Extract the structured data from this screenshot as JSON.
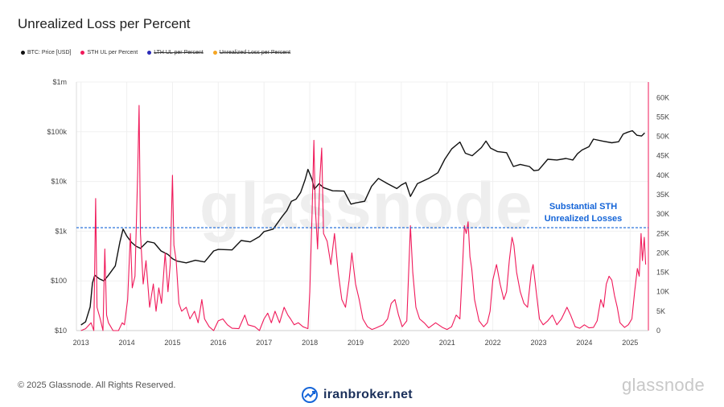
{
  "header": {
    "title": "Unrealized Loss per Percent"
  },
  "legend": [
    {
      "label": "BTC: Price [USD]",
      "color": "#111111",
      "struck": false
    },
    {
      "label": "STH UL per Percent",
      "color": "#f0195a",
      "struck": false
    },
    {
      "label": "LTH UL per Percent",
      "color": "#2b2bb8",
      "struck": true
    },
    {
      "label": "Unrealized Loss per Percent",
      "color": "#f5a623",
      "struck": true
    }
  ],
  "footer": {
    "copyright": "© 2025 Glassnode. All Rights Reserved.",
    "brand": "iranbroker.net",
    "watermark": "glassnode"
  },
  "watermark_center": "glassnode",
  "chart_data": {
    "type": "line",
    "annotation": {
      "text_line1": "Substantial STH",
      "text_line2": "Unrealized Losses",
      "color": "#1565d8"
    },
    "x_ticks": [
      "2013",
      "2014",
      "2015",
      "2016",
      "2017",
      "2018",
      "2019",
      "2020",
      "2021",
      "2022",
      "2023",
      "2024",
      "2025"
    ],
    "x_range": [
      2012.9,
      2025.4
    ],
    "y_left": {
      "scale": "log",
      "ticks": [
        "$10",
        "$100",
        "$1k",
        "$10k",
        "$100k",
        "$1m"
      ],
      "tick_values": [
        10,
        100,
        1000,
        10000,
        100000,
        1000000
      ]
    },
    "y_right": {
      "ticks": [
        "0",
        "5K",
        "10K",
        "15K",
        "20K",
        "25K",
        "30K",
        "35K",
        "40K",
        "45K",
        "50K",
        "55K",
        "60K"
      ],
      "tick_values": [
        0,
        5000,
        10000,
        15000,
        20000,
        25000,
        30000,
        35000,
        40000,
        45000,
        50000,
        55000,
        60000
      ],
      "max": 64000
    },
    "threshold": {
      "axis": "right",
      "value": 26500,
      "color": "#1565d8"
    },
    "series": [
      {
        "name": "BTC: Price [USD]",
        "axis": "left",
        "color": "#111111",
        "points": [
          [
            2013.0,
            13
          ],
          [
            2013.1,
            15
          ],
          [
            2013.2,
            30
          ],
          [
            2013.25,
            90
          ],
          [
            2013.3,
            130
          ],
          [
            2013.4,
            110
          ],
          [
            2013.5,
            100
          ],
          [
            2013.6,
            130
          ],
          [
            2013.75,
            200
          ],
          [
            2013.85,
            600
          ],
          [
            2013.92,
            1100
          ],
          [
            2014.0,
            800
          ],
          [
            2014.1,
            600
          ],
          [
            2014.2,
            500
          ],
          [
            2014.3,
            450
          ],
          [
            2014.45,
            620
          ],
          [
            2014.6,
            580
          ],
          [
            2014.75,
            400
          ],
          [
            2014.9,
            340
          ],
          [
            2015.0,
            280
          ],
          [
            2015.1,
            250
          ],
          [
            2015.3,
            230
          ],
          [
            2015.5,
            260
          ],
          [
            2015.7,
            240
          ],
          [
            2015.9,
            400
          ],
          [
            2016.0,
            430
          ],
          [
            2016.3,
            420
          ],
          [
            2016.5,
            650
          ],
          [
            2016.7,
            610
          ],
          [
            2016.9,
            780
          ],
          [
            2017.0,
            980
          ],
          [
            2017.2,
            1100
          ],
          [
            2017.4,
            2000
          ],
          [
            2017.5,
            2600
          ],
          [
            2017.6,
            4000
          ],
          [
            2017.7,
            4400
          ],
          [
            2017.8,
            6000
          ],
          [
            2017.9,
            11000
          ],
          [
            2017.96,
            17500
          ],
          [
            2018.05,
            11000
          ],
          [
            2018.1,
            7000
          ],
          [
            2018.2,
            9000
          ],
          [
            2018.3,
            7500
          ],
          [
            2018.5,
            6500
          ],
          [
            2018.75,
            6400
          ],
          [
            2018.9,
            3500
          ],
          [
            2019.0,
            3700
          ],
          [
            2019.2,
            4000
          ],
          [
            2019.35,
            8000
          ],
          [
            2019.5,
            11500
          ],
          [
            2019.7,
            9000
          ],
          [
            2019.9,
            7200
          ],
          [
            2020.0,
            8500
          ],
          [
            2020.1,
            9500
          ],
          [
            2020.2,
            5000
          ],
          [
            2020.35,
            9000
          ],
          [
            2020.6,
            11500
          ],
          [
            2020.8,
            15000
          ],
          [
            2020.95,
            28000
          ],
          [
            2021.1,
            45000
          ],
          [
            2021.28,
            62000
          ],
          [
            2021.4,
            37000
          ],
          [
            2021.55,
            33000
          ],
          [
            2021.75,
            48000
          ],
          [
            2021.85,
            65000
          ],
          [
            2021.95,
            47000
          ],
          [
            2022.1,
            40000
          ],
          [
            2022.3,
            38000
          ],
          [
            2022.45,
            20000
          ],
          [
            2022.6,
            22000
          ],
          [
            2022.8,
            20000
          ],
          [
            2022.9,
            16500
          ],
          [
            2023.0,
            17000
          ],
          [
            2023.2,
            28000
          ],
          [
            2023.4,
            27000
          ],
          [
            2023.6,
            29000
          ],
          [
            2023.75,
            27000
          ],
          [
            2023.85,
            36000
          ],
          [
            2023.95,
            43000
          ],
          [
            2024.1,
            50000
          ],
          [
            2024.2,
            71000
          ],
          [
            2024.4,
            65000
          ],
          [
            2024.6,
            60000
          ],
          [
            2024.75,
            63000
          ],
          [
            2024.85,
            90000
          ],
          [
            2024.95,
            98000
          ],
          [
            2025.05,
            105000
          ],
          [
            2025.15,
            85000
          ],
          [
            2025.25,
            82000
          ],
          [
            2025.32,
            95000
          ]
        ]
      },
      {
        "name": "STH UL per Percent",
        "axis": "right",
        "color": "#f0195a",
        "points": [
          [
            2013.0,
            0
          ],
          [
            2013.1,
            500
          ],
          [
            2013.22,
            2000
          ],
          [
            2013.28,
            0
          ],
          [
            2013.32,
            34000
          ],
          [
            2013.35,
            6000
          ],
          [
            2013.42,
            3000
          ],
          [
            2013.48,
            0
          ],
          [
            2013.52,
            21000
          ],
          [
            2013.56,
            4000
          ],
          [
            2013.6,
            2000
          ],
          [
            2013.65,
            1000
          ],
          [
            2013.7,
            0
          ],
          [
            2013.82,
            0
          ],
          [
            2013.9,
            2000
          ],
          [
            2013.95,
            1500
          ],
          [
            2014.02,
            8000
          ],
          [
            2014.08,
            25000
          ],
          [
            2014.12,
            11000
          ],
          [
            2014.18,
            14000
          ],
          [
            2014.24,
            41000
          ],
          [
            2014.27,
            58000
          ],
          [
            2014.3,
            25000
          ],
          [
            2014.36,
            12000
          ],
          [
            2014.42,
            18000
          ],
          [
            2014.5,
            6000
          ],
          [
            2014.58,
            12000
          ],
          [
            2014.64,
            5000
          ],
          [
            2014.7,
            11000
          ],
          [
            2014.76,
            7000
          ],
          [
            2014.84,
            20000
          ],
          [
            2014.9,
            10000
          ],
          [
            2014.95,
            17000
          ],
          [
            2015.0,
            40000
          ],
          [
            2015.03,
            22000
          ],
          [
            2015.08,
            18000
          ],
          [
            2015.14,
            7000
          ],
          [
            2015.2,
            5000
          ],
          [
            2015.3,
            6000
          ],
          [
            2015.38,
            3000
          ],
          [
            2015.48,
            5000
          ],
          [
            2015.56,
            2000
          ],
          [
            2015.64,
            8000
          ],
          [
            2015.7,
            3000
          ],
          [
            2015.8,
            1000
          ],
          [
            2015.9,
            0
          ],
          [
            2016.0,
            2500
          ],
          [
            2016.1,
            3000
          ],
          [
            2016.2,
            1500
          ],
          [
            2016.3,
            600
          ],
          [
            2016.45,
            500
          ],
          [
            2016.58,
            4000
          ],
          [
            2016.65,
            1500
          ],
          [
            2016.8,
            1000
          ],
          [
            2016.9,
            0
          ],
          [
            2017.0,
            3000
          ],
          [
            2017.08,
            4500
          ],
          [
            2017.16,
            2000
          ],
          [
            2017.24,
            5000
          ],
          [
            2017.34,
            2000
          ],
          [
            2017.44,
            6000
          ],
          [
            2017.52,
            4000
          ],
          [
            2017.58,
            3000
          ],
          [
            2017.66,
            1500
          ],
          [
            2017.75,
            2000
          ],
          [
            2017.85,
            1000
          ],
          [
            2017.96,
            500
          ],
          [
            2018.0,
            10000
          ],
          [
            2018.05,
            30000
          ],
          [
            2018.09,
            49000
          ],
          [
            2018.12,
            32000
          ],
          [
            2018.17,
            21000
          ],
          [
            2018.22,
            39000
          ],
          [
            2018.26,
            47000
          ],
          [
            2018.3,
            25000
          ],
          [
            2018.38,
            23000
          ],
          [
            2018.46,
            17000
          ],
          [
            2018.54,
            25000
          ],
          [
            2018.62,
            15000
          ],
          [
            2018.7,
            8000
          ],
          [
            2018.78,
            6000
          ],
          [
            2018.86,
            13000
          ],
          [
            2018.92,
            20000
          ],
          [
            2019.0,
            12000
          ],
          [
            2019.08,
            8000
          ],
          [
            2019.16,
            3000
          ],
          [
            2019.26,
            1000
          ],
          [
            2019.36,
            300
          ],
          [
            2019.45,
            700
          ],
          [
            2019.6,
            1500
          ],
          [
            2019.7,
            3000
          ],
          [
            2019.78,
            7000
          ],
          [
            2019.86,
            8000
          ],
          [
            2019.94,
            4000
          ],
          [
            2020.02,
            1000
          ],
          [
            2020.12,
            2500
          ],
          [
            2020.2,
            27000
          ],
          [
            2020.25,
            15000
          ],
          [
            2020.32,
            6000
          ],
          [
            2020.4,
            3000
          ],
          [
            2020.5,
            2000
          ],
          [
            2020.6,
            700
          ],
          [
            2020.75,
            2000
          ],
          [
            2020.9,
            800
          ],
          [
            2021.0,
            300
          ],
          [
            2021.1,
            1000
          ],
          [
            2021.2,
            4000
          ],
          [
            2021.28,
            3000
          ],
          [
            2021.34,
            17000
          ],
          [
            2021.38,
            27000
          ],
          [
            2021.42,
            25000
          ],
          [
            2021.46,
            28000
          ],
          [
            2021.5,
            19000
          ],
          [
            2021.54,
            16000
          ],
          [
            2021.6,
            8000
          ],
          [
            2021.7,
            2500
          ],
          [
            2021.8,
            1000
          ],
          [
            2021.88,
            2000
          ],
          [
            2021.94,
            5000
          ],
          [
            2022.0,
            13000
          ],
          [
            2022.08,
            17000
          ],
          [
            2022.16,
            12000
          ],
          [
            2022.24,
            8000
          ],
          [
            2022.3,
            10000
          ],
          [
            2022.36,
            18000
          ],
          [
            2022.42,
            24000
          ],
          [
            2022.46,
            22000
          ],
          [
            2022.52,
            15000
          ],
          [
            2022.6,
            10000
          ],
          [
            2022.68,
            7000
          ],
          [
            2022.76,
            6000
          ],
          [
            2022.84,
            15000
          ],
          [
            2022.88,
            17000
          ],
          [
            2022.95,
            10000
          ],
          [
            2023.02,
            3000
          ],
          [
            2023.1,
            1500
          ],
          [
            2023.2,
            2500
          ],
          [
            2023.3,
            4000
          ],
          [
            2023.4,
            1500
          ],
          [
            2023.5,
            3000
          ],
          [
            2023.62,
            6000
          ],
          [
            2023.7,
            4000
          ],
          [
            2023.8,
            1000
          ],
          [
            2023.9,
            600
          ],
          [
            2024.0,
            1500
          ],
          [
            2024.1,
            700
          ],
          [
            2024.2,
            800
          ],
          [
            2024.28,
            2500
          ],
          [
            2024.36,
            8000
          ],
          [
            2024.42,
            6000
          ],
          [
            2024.48,
            12000
          ],
          [
            2024.54,
            14000
          ],
          [
            2024.6,
            13000
          ],
          [
            2024.66,
            9000
          ],
          [
            2024.72,
            6000
          ],
          [
            2024.78,
            2000
          ],
          [
            2024.88,
            800
          ],
          [
            2024.96,
            1500
          ],
          [
            2025.04,
            3000
          ],
          [
            2025.1,
            10000
          ],
          [
            2025.16,
            16000
          ],
          [
            2025.2,
            14000
          ],
          [
            2025.24,
            25000
          ],
          [
            2025.27,
            18000
          ],
          [
            2025.31,
            24000
          ],
          [
            2025.34,
            17000
          ]
        ]
      }
    ]
  }
}
